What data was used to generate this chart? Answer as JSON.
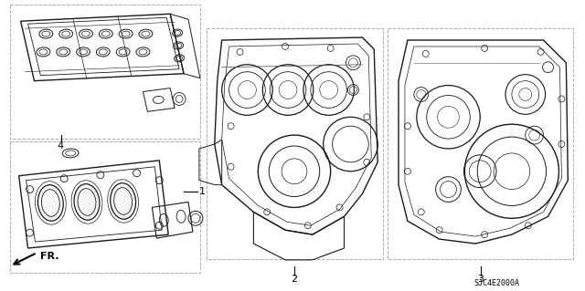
{
  "background_color": "#ffffff",
  "line_color": "#1a1a1a",
  "dashed_color": "#aaaaaa",
  "text_color": "#000000",
  "fr_label": "FR.",
  "ref_code": "SJC4E2000A",
  "figsize": [
    6.4,
    3.19
  ],
  "dpi": 100,
  "img_alpha": 0.92
}
